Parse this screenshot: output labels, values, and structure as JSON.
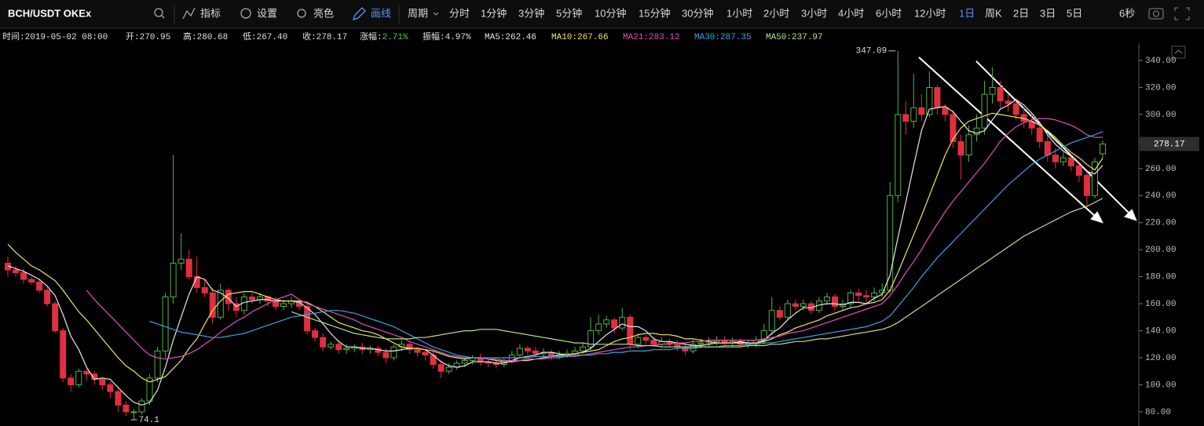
{
  "toolbar": {
    "symbol": "BCH/USDT OKEx",
    "tools": [
      "指标",
      "设置",
      "亮色",
      "画线"
    ],
    "period_label": "周期",
    "periods": [
      "分时",
      "1分钟",
      "3分钟",
      "5分钟",
      "10分钟",
      "15分钟",
      "30分钟",
      "1小时",
      "2小时",
      "3小时",
      "4小时",
      "6小时",
      "12小时",
      "1日",
      "周K",
      "2日",
      "3日",
      "5日"
    ],
    "refresh": "6秒"
  },
  "info_bar": [
    {
      "label": "时间:",
      "value": "2019-05-02 08:00"
    },
    {
      "label": "开:",
      "value": "270.95"
    },
    {
      "label": "高:",
      "value": "280.68"
    },
    {
      "label": "低:",
      "value": "267.40"
    },
    {
      "label": "收:",
      "value": "278.17"
    },
    {
      "label": "涨幅:",
      "value": "2.71%",
      "value_color": "#5cc45c"
    },
    {
      "label": "振幅:",
      "value": "4.97%"
    },
    {
      "label": "MA5:",
      "value": "262.46",
      "color": "#e8e8e8"
    },
    {
      "label": "MA10:",
      "value": "267.66",
      "color": "#f3e463"
    },
    {
      "label": "MA21:",
      "value": "283.12",
      "color": "#e050c0"
    },
    {
      "label": "MA30:",
      "value": "287.35",
      "color": "#3aa3e0"
    },
    {
      "label": "MA50:",
      "value": "237.97",
      "color": "#b9e38c"
    }
  ],
  "chart_data": {
    "type": "candlestick",
    "up_color": "#4fb348",
    "down_color": "#e0303f",
    "ylim": [
      69.5,
      352.8
    ],
    "yticks": [
      {
        "value": 80,
        "label": "80.00"
      },
      {
        "value": 100,
        "label": "100.00"
      },
      {
        "value": 120,
        "label": "120.00"
      },
      {
        "value": 140,
        "label": "140.00"
      },
      {
        "value": 160,
        "label": "160.00"
      },
      {
        "value": 180,
        "label": "180.00"
      },
      {
        "value": 200,
        "label": "200.00"
      },
      {
        "value": 220,
        "label": "220.00"
      },
      {
        "value": 240,
        "label": "240.00"
      },
      {
        "value": 260,
        "label": "260.00"
      },
      {
        "value": 280,
        "label": "280.00"
      },
      {
        "value": 300,
        "label": "300.00"
      },
      {
        "value": 320,
        "label": "320.00"
      },
      {
        "value": 340,
        "label": "340.00"
      }
    ],
    "open": [
      190,
      185,
      183,
      178,
      176,
      170,
      160,
      140,
      105,
      100,
      110,
      108,
      104,
      100,
      95,
      85,
      80,
      80,
      88,
      105,
      125,
      165,
      190,
      193,
      180,
      172,
      168,
      150,
      170,
      160,
      155,
      165,
      163,
      165,
      162,
      158,
      160,
      162,
      158,
      140,
      135,
      128,
      130,
      126,
      127,
      128,
      126,
      127,
      124,
      120,
      128,
      130,
      126,
      124,
      122,
      115,
      110,
      113,
      116,
      118,
      120,
      117,
      116,
      115,
      118,
      122,
      127,
      125,
      123,
      124,
      121,
      122,
      123,
      125,
      128,
      140,
      145,
      148,
      142,
      150,
      130,
      135,
      133,
      130,
      132,
      130,
      128,
      125,
      130,
      131,
      132,
      133,
      131,
      132,
      130,
      131,
      133,
      140,
      155,
      150,
      160,
      158,
      160,
      155,
      162,
      165,
      158,
      160,
      168,
      166,
      165,
      168,
      170,
      240,
      300,
      295,
      305,
      300,
      320,
      305,
      300,
      280,
      270,
      285,
      290,
      315,
      320,
      310,
      308,
      300,
      295,
      290,
      280,
      270,
      265,
      268,
      262,
      255,
      240,
      270.95
    ],
    "high": [
      195,
      188,
      186,
      180,
      178,
      172,
      162,
      142,
      108,
      112,
      112,
      110,
      106,
      102,
      97,
      88,
      82,
      90,
      108,
      128,
      168,
      270,
      212,
      200,
      195,
      178,
      172,
      175,
      172,
      165,
      168,
      168,
      168,
      166,
      165,
      163,
      165,
      163,
      160,
      142,
      138,
      132,
      133,
      130,
      130,
      131,
      129,
      129,
      127,
      130,
      133,
      132,
      128,
      126,
      125,
      118,
      116,
      118,
      120,
      122,
      123,
      120,
      118,
      120,
      125,
      130,
      129,
      128,
      127,
      126,
      125,
      126,
      128,
      131,
      150,
      152,
      151,
      150,
      157,
      152,
      138,
      137,
      136,
      135,
      134,
      133,
      131,
      133,
      134,
      135,
      136,
      136,
      135,
      134,
      133,
      136,
      145,
      165,
      158,
      163,
      163,
      163,
      162,
      165,
      168,
      167,
      163,
      170,
      171,
      170,
      172,
      175,
      250,
      347.09,
      310,
      330,
      315,
      332,
      322,
      308,
      303,
      285,
      292,
      300,
      325,
      335,
      325,
      315,
      312,
      305,
      300,
      295,
      285,
      275,
      272,
      270,
      265,
      258,
      268,
      280.68
    ],
    "low": [
      180,
      180,
      175,
      174,
      168,
      158,
      138,
      102,
      95,
      98,
      103,
      100,
      96,
      90,
      80,
      77,
      74.1,
      78,
      85,
      102,
      120,
      160,
      185,
      178,
      168,
      165,
      145,
      148,
      155,
      150,
      152,
      160,
      160,
      158,
      155,
      155,
      157,
      155,
      137,
      132,
      125,
      126,
      123,
      123,
      124,
      123,
      123,
      121,
      116,
      118,
      125,
      123,
      121,
      118,
      112,
      105,
      108,
      111,
      113,
      115,
      114,
      113,
      112,
      113,
      116,
      120,
      122,
      120,
      120,
      118,
      119,
      120,
      121,
      123,
      126,
      137,
      142,
      138,
      140,
      126,
      127,
      130,
      128,
      128,
      128,
      125,
      122,
      123,
      127,
      128,
      129,
      128,
      128,
      128,
      127,
      128,
      130,
      137,
      148,
      148,
      155,
      155,
      152,
      153,
      159,
      155,
      155,
      157,
      162,
      160,
      162,
      165,
      168,
      235,
      285,
      290,
      295,
      298,
      300,
      295,
      275,
      252,
      265,
      280,
      285,
      308,
      305,
      302,
      296,
      290,
      285,
      275,
      265,
      260,
      262,
      258,
      250,
      232,
      238,
      267.4
    ],
    "close": [
      185,
      183,
      178,
      176,
      170,
      160,
      140,
      105,
      100,
      110,
      108,
      104,
      100,
      95,
      85,
      80,
      80,
      88,
      105,
      125,
      165,
      190,
      193,
      180,
      172,
      168,
      150,
      170,
      160,
      155,
      165,
      163,
      165,
      162,
      158,
      160,
      162,
      158,
      140,
      135,
      128,
      130,
      126,
      127,
      128,
      126,
      127,
      124,
      120,
      128,
      130,
      126,
      124,
      122,
      115,
      110,
      113,
      116,
      118,
      120,
      117,
      116,
      115,
      118,
      122,
      127,
      125,
      123,
      124,
      121,
      122,
      123,
      125,
      128,
      140,
      145,
      148,
      142,
      150,
      130,
      135,
      133,
      130,
      132,
      130,
      128,
      125,
      130,
      131,
      132,
      133,
      131,
      132,
      130,
      131,
      133,
      140,
      155,
      150,
      160,
      158,
      160,
      155,
      162,
      165,
      158,
      160,
      168,
      166,
      165,
      168,
      170,
      240,
      300,
      295,
      305,
      300,
      320,
      305,
      300,
      280,
      270,
      285,
      290,
      315,
      320,
      310,
      308,
      300,
      295,
      290,
      280,
      270,
      265,
      268,
      262,
      255,
      240,
      265,
      278.17
    ],
    "series": [
      {
        "color": "#e8e8e8",
        "values": [
          188,
          186,
          184,
          181,
          178,
          173,
          166,
          152,
          136,
          126,
          113,
          104,
          105,
          104,
          98,
          92,
          87,
          85,
          87,
          96,
          113,
          133,
          150,
          167,
          180,
          178,
          170,
          168,
          164,
          158,
          161,
          162,
          163,
          163,
          162,
          162,
          162,
          161,
          157,
          152,
          145,
          138,
          132,
          128,
          128,
          127,
          127,
          126,
          125,
          125,
          126,
          127,
          127,
          126,
          122,
          117,
          114,
          113,
          114,
          117,
          117,
          117,
          116,
          116,
          118,
          120,
          121,
          122,
          124,
          124,
          123,
          122,
          123,
          124,
          127,
          132,
          137,
          141,
          145,
          143,
          143,
          140,
          134,
          132,
          132,
          131,
          130,
          129,
          129,
          130,
          131,
          131,
          131,
          132,
          131,
          131,
          133,
          138,
          142,
          148,
          153,
          157,
          157,
          159,
          160,
          160,
          159,
          161,
          161,
          160,
          164,
          167,
          181,
          209,
          235,
          262,
          288,
          304,
          305,
          306,
          302,
          295,
          288,
          286,
          288,
          296,
          304,
          307,
          311,
          307,
          301,
          294,
          285,
          278,
          273,
          269,
          264,
          258,
          256,
          262.46
        ]
      },
      {
        "color": "#f3e463",
        "values": [
          204,
          198,
          193,
          188,
          185,
          181,
          177,
          170,
          162,
          154,
          148,
          141,
          134,
          127,
          120,
          114,
          110,
          105,
          102,
          104,
          106,
          112,
          118,
          127,
          134,
          145,
          155,
          162,
          167,
          168,
          169,
          169,
          167,
          165,
          163,
          162,
          162,
          162,
          161,
          158,
          154,
          150,
          146,
          144,
          142,
          140,
          139,
          137,
          134,
          131,
          128,
          127,
          127,
          126,
          125,
          123,
          121,
          120,
          119,
          120,
          120,
          119,
          118,
          117,
          117,
          118,
          118,
          119,
          120,
          121,
          122,
          122,
          123,
          124,
          125,
          126,
          129,
          132,
          134,
          135,
          137,
          138,
          138,
          137,
          137,
          136,
          134,
          134,
          133,
          132,
          131,
          131,
          131,
          131,
          131,
          131,
          132,
          134,
          137,
          139,
          142,
          144,
          146,
          148,
          151,
          153,
          155,
          157,
          158,
          160,
          161,
          163,
          170,
          183,
          197,
          211,
          225,
          240,
          255,
          270,
          282,
          290,
          295,
          297,
          299,
          301,
          300,
          299,
          298,
          297,
          295,
          292,
          288,
          283,
          277,
          272,
          268,
          263,
          259,
          267.66
        ]
      },
      {
        "color": "#e050c0",
        "values": [
          null,
          null,
          null,
          null,
          null,
          null,
          null,
          null,
          null,
          null,
          170,
          163,
          157,
          151,
          145,
          139,
          133,
          127,
          122,
          120,
          119,
          120,
          121,
          123,
          126,
          130,
          134,
          139,
          143,
          147,
          150,
          154,
          157,
          160,
          163,
          165,
          167,
          163,
          160,
          158,
          156,
          154,
          152,
          150,
          148,
          145,
          143,
          141,
          139,
          137,
          135,
          132,
          130,
          128,
          126,
          124,
          122,
          121,
          120,
          120,
          120,
          119,
          119,
          118,
          118,
          118,
          119,
          119,
          119,
          120,
          120,
          121,
          121,
          122,
          123,
          124,
          125,
          126,
          127,
          128,
          128,
          129,
          129,
          130,
          130,
          131,
          131,
          132,
          132,
          133,
          133,
          133,
          133,
          133,
          133,
          133,
          134,
          135,
          136,
          138,
          139,
          140,
          142,
          144,
          146,
          148,
          150,
          152,
          154,
          156,
          158,
          160,
          166,
          174,
          183,
          191,
          200,
          210,
          219,
          228,
          236,
          243,
          250,
          257,
          264,
          272,
          280,
          286,
          291,
          294,
          296,
          297,
          297,
          296,
          294,
          292,
          289,
          285,
          283,
          283.12
        ]
      },
      {
        "color": "#3aa3e0",
        "values": [
          null,
          null,
          null,
          null,
          null,
          null,
          null,
          null,
          null,
          null,
          null,
          null,
          null,
          null,
          null,
          null,
          null,
          null,
          147,
          145,
          143,
          141,
          139,
          138,
          137,
          136,
          135,
          135,
          136,
          137,
          138,
          140,
          142,
          144,
          146,
          148,
          150,
          151,
          152,
          153,
          154,
          155,
          155,
          154,
          153,
          151,
          149,
          147,
          145,
          143,
          140,
          137,
          134,
          131,
          128,
          126,
          124,
          122,
          121,
          120,
          120,
          120,
          120,
          120,
          120,
          120,
          120,
          121,
          121,
          121,
          121,
          121,
          122,
          122,
          122,
          123,
          123,
          124,
          124,
          125,
          125,
          125,
          126,
          126,
          126,
          127,
          127,
          127,
          128,
          128,
          128,
          129,
          129,
          129,
          130,
          130,
          131,
          131,
          132,
          133,
          134,
          135,
          136,
          137,
          138,
          139,
          140,
          141,
          142,
          143,
          145,
          147,
          151,
          158,
          165,
          172,
          180,
          187,
          194,
          200,
          206,
          212,
          218,
          224,
          230,
          236,
          242,
          248,
          253,
          258,
          263,
          267,
          270,
          273,
          276,
          279,
          281,
          283,
          285,
          287.35
        ]
      },
      {
        "color": "#b9e38c",
        "values": [
          null,
          null,
          null,
          null,
          null,
          null,
          null,
          null,
          null,
          null,
          null,
          null,
          null,
          null,
          null,
          null,
          null,
          null,
          null,
          null,
          null,
          null,
          null,
          null,
          null,
          null,
          null,
          null,
          null,
          null,
          null,
          null,
          null,
          null,
          null,
          null,
          154,
          152,
          150,
          148,
          146,
          144,
          142,
          140,
          138,
          137,
          136,
          135,
          134,
          134,
          134,
          134,
          135,
          135,
          136,
          137,
          138,
          139,
          140,
          140,
          141,
          141,
          141,
          140,
          139,
          138,
          137,
          136,
          135,
          134,
          133,
          132,
          131,
          131,
          130,
          130,
          130,
          130,
          130,
          130,
          129,
          129,
          129,
          128,
          128,
          128,
          128,
          128,
          128,
          128,
          128,
          128,
          128,
          128,
          129,
          129,
          129,
          130,
          130,
          131,
          132,
          132,
          133,
          134,
          134,
          135,
          136,
          137,
          138,
          139,
          140,
          141,
          143,
          146,
          150,
          154,
          158,
          162,
          166,
          170,
          174,
          178,
          182,
          186,
          190,
          194,
          198,
          202,
          206,
          210,
          213,
          216,
          219,
          222,
          225,
          228,
          230,
          232,
          235,
          237.97
        ]
      }
    ]
  }
}
